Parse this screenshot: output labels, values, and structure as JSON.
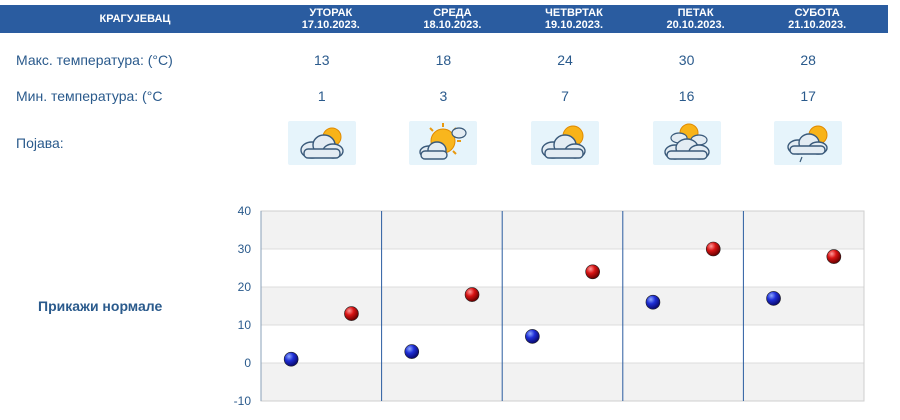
{
  "header": {
    "city": "КРАГУЈЕВАЦ",
    "days": [
      {
        "name": "УТОРАК",
        "date": "17.10.2023."
      },
      {
        "name": "СРЕДА",
        "date": "18.10.2023."
      },
      {
        "name": "ЧЕТВРТАК",
        "date": "19.10.2023."
      },
      {
        "name": "ПЕТАК",
        "date": "20.10.2023."
      },
      {
        "name": "СУБОТА",
        "date": "21.10.2023."
      }
    ]
  },
  "rows": {
    "max_label": "Макс. температура: (°C)",
    "min_label": "Мин. температура: (°C",
    "phen_label": "Појава:",
    "max": [
      "13",
      "18",
      "24",
      "30",
      "28"
    ],
    "min": [
      "1",
      "3",
      "7",
      "16",
      "17"
    ],
    "icons": [
      "cloud-sun-icon",
      "sun-cloud-icon",
      "cloud-sun-icon",
      "sun-behind-clouds-icon",
      "cloud-sun-drizzle-icon"
    ]
  },
  "normals_link": "Прикажи нормале",
  "chart_data": {
    "type": "scatter",
    "categories": [
      "17.10.2023.",
      "18.10.2023.",
      "19.10.2023.",
      "20.10.2023.",
      "21.10.2023."
    ],
    "series": [
      {
        "values": [
          1,
          3,
          7,
          16,
          17
        ],
        "color": "#1010c0"
      },
      {
        "values": [
          13,
          18,
          24,
          30,
          28
        ],
        "color": "#d01010"
      }
    ],
    "ylim": [
      -10,
      40
    ],
    "yticks": [
      "40",
      "30",
      "20",
      "10",
      "0",
      "-10"
    ],
    "grid": true
  }
}
